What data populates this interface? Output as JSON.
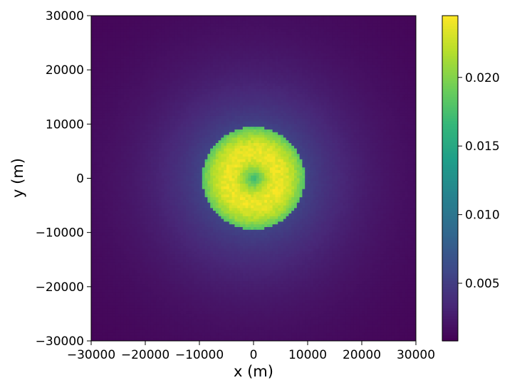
{
  "chart_data": {
    "type": "heatmap",
    "title": "",
    "xlabel": "x (m)",
    "ylabel": "y (m)",
    "xlim": [
      -30000,
      30000
    ],
    "ylim": [
      -30000,
      30000
    ],
    "xticks": [
      -30000,
      -20000,
      -10000,
      0,
      10000,
      20000,
      30000
    ],
    "yticks": [
      -30000,
      -20000,
      -10000,
      0,
      10000,
      20000,
      30000
    ],
    "xtick_labels": [
      "−30000",
      "−20000",
      "−10000",
      "0",
      "10000",
      "20000",
      "30000"
    ],
    "ytick_labels": [
      "−30000",
      "−20000",
      "−10000",
      "0",
      "10000",
      "20000",
      "30000"
    ],
    "grid": false,
    "colormap": "viridis",
    "grid_cells": 120,
    "colorbar": {
      "vmin": 0.0008,
      "vmax": 0.0245,
      "ticks": [
        0.005,
        0.01,
        0.015,
        0.02
      ],
      "tick_labels": [
        "0.005",
        "0.010",
        "0.015",
        "0.020"
      ]
    },
    "field_profile": {
      "description_of_values": "radially symmetric density centered at (0, 0)",
      "disk_radius": 9500,
      "center_value": 0.0165,
      "ring_peak_radius": 4500,
      "ring_peak_value": 0.0238,
      "edge_of_disk_value": 0.0178,
      "outside_value_at_disk_edge": 0.0056,
      "outside_decay_length": 11000,
      "background_floor": 0.0009
    }
  }
}
